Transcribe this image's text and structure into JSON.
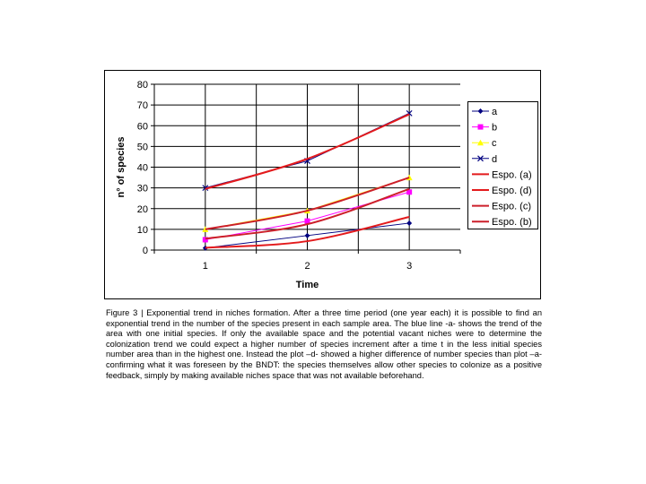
{
  "chart_data": {
    "type": "line",
    "xlabel": "Time",
    "ylabel": "n° of species",
    "categories": [
      "1",
      "2",
      "3"
    ],
    "ylim": [
      0,
      80
    ],
    "yticks": [
      0,
      10,
      20,
      30,
      40,
      50,
      60,
      70,
      80
    ],
    "grid": true,
    "legend_placement": "right",
    "series": [
      {
        "name": "a",
        "values": [
          1,
          7,
          13
        ],
        "color": "#000080",
        "marker": "diamond",
        "width": 1,
        "smooth": false
      },
      {
        "name": "b",
        "values": [
          5,
          14,
          28
        ],
        "color": "#ff00ff",
        "marker": "square",
        "width": 1,
        "smooth": false
      },
      {
        "name": "c",
        "values": [
          10,
          19,
          35
        ],
        "color": "#ffff00",
        "marker": "triangle",
        "width": 1,
        "smooth": false
      },
      {
        "name": "d",
        "values": [
          30,
          43,
          66
        ],
        "color": "#000080",
        "marker": "x",
        "width": 1,
        "smooth": false
      },
      {
        "name": "Espo. (a)",
        "values": [
          1.1,
          4.3,
          16
        ],
        "color": "#e31a1c",
        "marker": "none",
        "width": 2,
        "smooth": true
      },
      {
        "name": "Espo. (d)",
        "values": [
          29.5,
          44,
          65.5
        ],
        "color": "#e31a1c",
        "marker": "none",
        "width": 2,
        "smooth": true
      },
      {
        "name": "Espo. (c)",
        "values": [
          10,
          19,
          35
        ],
        "color": "#cc1f2a",
        "marker": "none",
        "width": 2,
        "smooth": true
      },
      {
        "name": "Espo. (b)",
        "values": [
          5.5,
          12.5,
          29.5
        ],
        "color": "#cc1f2a",
        "marker": "none",
        "width": 2,
        "smooth": true
      }
    ]
  },
  "caption": "Figure 3 | Exponential trend in niches formation. After a three time period (one year each) it is possible to find an exponential trend in the number of the species present in each sample area. The blue line -a- shows the trend of the area with one initial species. If only the available space and the potential vacant niches were to determine the colonization trend we could expect a higher number of species increment after a time t in the less initial species number area than in the highest one. Instead the plot –d- showed a higher difference of number species than plot –a- confirming what it was foreseen by the BNDT: the species themselves allow other species to colonize as a positive feedback, simply by making available niches space that was not available beforehand."
}
